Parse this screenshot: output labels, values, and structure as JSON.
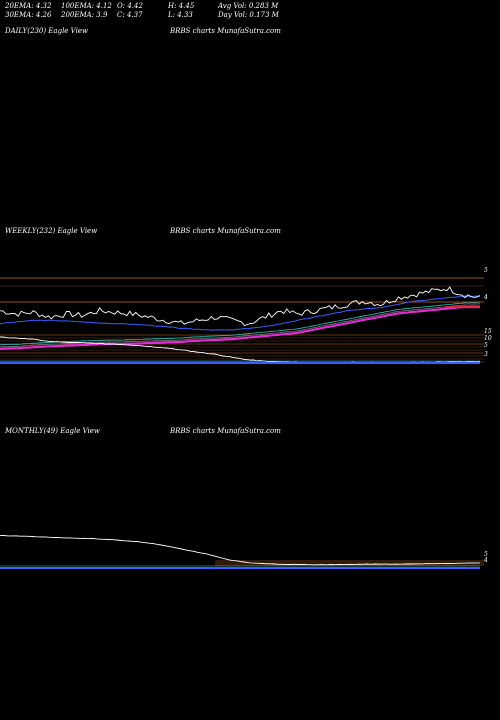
{
  "stats": {
    "row1": [
      "20EMA: 4.32",
      "100EMA: 4.12",
      "O: 4.42",
      "H: 4.45",
      "Avg Vol: 0.283 M"
    ],
    "row2": [
      "30EMA: 4.26",
      "200EMA: 3.9",
      "C: 4.37",
      "L: 4.33",
      "Day Vol: 0.173 M"
    ]
  },
  "panels": {
    "daily": {
      "label": "DAILY(230) Eagle  View",
      "brand": "BRBS charts MunafaSutra.com"
    },
    "weekly": {
      "label": "WEEKLY(232) Eagle  View",
      "brand": "BRBS charts MunafaSutra.com"
    },
    "monthly": {
      "label": "MONTHLY(49) Eagle  View",
      "brand": "BRBS charts MunafaSutra.com"
    }
  },
  "chart_data": [
    {
      "type": "line",
      "title": "WEEKLY(232) Eagle  View",
      "price_scale_labels": [
        "5",
        "4",
        "15",
        "10",
        "5",
        "3"
      ],
      "series": [
        {
          "values": [
            4.6,
            4.5,
            4.55,
            4.4,
            4.5,
            4.45,
            4.6,
            4.55,
            4.5,
            4.4,
            4.3,
            4.2,
            4.3,
            4.4,
            4.3,
            4.2,
            4.4,
            4.6,
            4.5,
            4.6,
            4.7,
            4.8,
            4.9,
            4.8,
            5.0,
            5.1,
            5.2,
            5.3,
            5.1,
            5.0
          ]
        },
        {
          "values": [
            4.2,
            4.25,
            4.3,
            4.3,
            4.28,
            4.25,
            4.22,
            4.2,
            4.18,
            4.15,
            4.1,
            4.05,
            4.02,
            4.0,
            4.0,
            4.05,
            4.1,
            4.2,
            4.3,
            4.4,
            4.5,
            4.6,
            4.65,
            4.7,
            4.8,
            4.9,
            4.95,
            5.0,
            5.05,
            5.05
          ]
        },
        {
          "values": [
            3.6,
            3.62,
            3.65,
            3.68,
            3.7,
            3.72,
            3.74,
            3.75,
            3.76,
            3.78,
            3.8,
            3.82,
            3.85,
            3.88,
            3.9,
            3.95,
            4.0,
            4.05,
            4.1,
            4.2,
            4.3,
            4.4,
            4.5,
            4.6,
            4.7,
            4.75,
            4.8,
            4.85,
            4.9,
            4.9
          ]
        },
        {
          "values": [
            10.5,
            10.3,
            10.0,
            9.5,
            9.3,
            9.2,
            9.0,
            8.8,
            8.6,
            8.3,
            8.0,
            7.5,
            7.0,
            6.5,
            5.8,
            5.2,
            4.9,
            4.7,
            4.6,
            4.5,
            4.5,
            4.6,
            4.6,
            4.5,
            4.5,
            4.6,
            4.6,
            4.7,
            4.7,
            4.8
          ]
        }
      ]
    },
    {
      "type": "line",
      "title": "MONTHLY(49) Eagle  View",
      "price_scale_labels": [
        "5",
        "4"
      ],
      "series": [
        {
          "values": [
            14.0,
            13.8,
            13.5,
            13.2,
            13.0,
            12.6,
            12.0,
            11.0,
            9.5,
            8.0,
            6.0,
            5.0,
            4.6,
            4.5,
            4.4,
            4.5,
            4.6,
            4.6,
            4.7,
            4.8,
            4.9,
            5.0
          ]
        },
        {
          "values": [
            4.0,
            4.0,
            4.0,
            4.0,
            4.0,
            4.0,
            4.0,
            4.0,
            4.0,
            4.0,
            4.0,
            4.0,
            4.0,
            4.0,
            4.0,
            4.1,
            4.2,
            4.3,
            4.4,
            4.5,
            4.6,
            4.7
          ]
        }
      ]
    }
  ]
}
